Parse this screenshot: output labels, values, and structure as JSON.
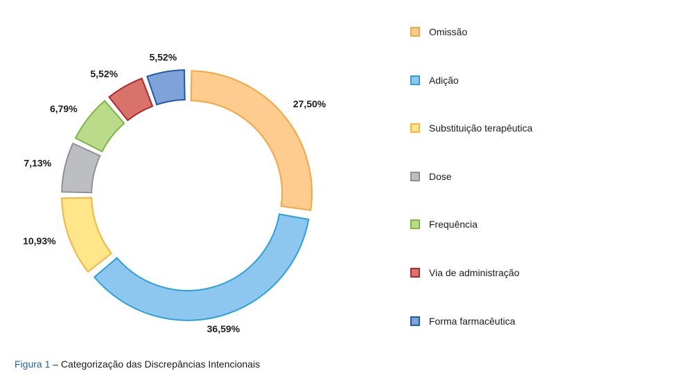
{
  "chart_data": {
    "type": "pie",
    "title": "",
    "categories": [
      "Omissão",
      "Adição",
      "Substituição terapêutica",
      "Dose",
      "Frequência",
      "Via de administração",
      "Forma farmacêutica"
    ],
    "values": [
      27.5,
      36.59,
      10.93,
      7.13,
      6.79,
      5.52,
      5.52
    ],
    "value_labels": [
      "27,50%",
      "36,59%",
      "10,93%",
      "7,13%",
      "6,79%",
      "5,52%",
      "5,52%"
    ],
    "donut": true,
    "exploded": true,
    "legend_position": "right",
    "colors": [
      {
        "fill": "#ffcc8f",
        "stroke": "#f5a73e"
      },
      {
        "fill": "#8dc6ee",
        "stroke": "#27a2dc"
      },
      {
        "fill": "#ffe68a",
        "stroke": "#f7b53d"
      },
      {
        "fill": "#bdbec1",
        "stroke": "#8e9094"
      },
      {
        "fill": "#b9db8a",
        "stroke": "#7ab741"
      },
      {
        "fill": "#d8736c",
        "stroke": "#b8222a"
      },
      {
        "fill": "#7fa3d9",
        "stroke": "#1d5ba8"
      }
    ]
  },
  "caption": {
    "figure": "Figura 1",
    "text": " – Categorização das Discrepâncias Intencionais"
  }
}
